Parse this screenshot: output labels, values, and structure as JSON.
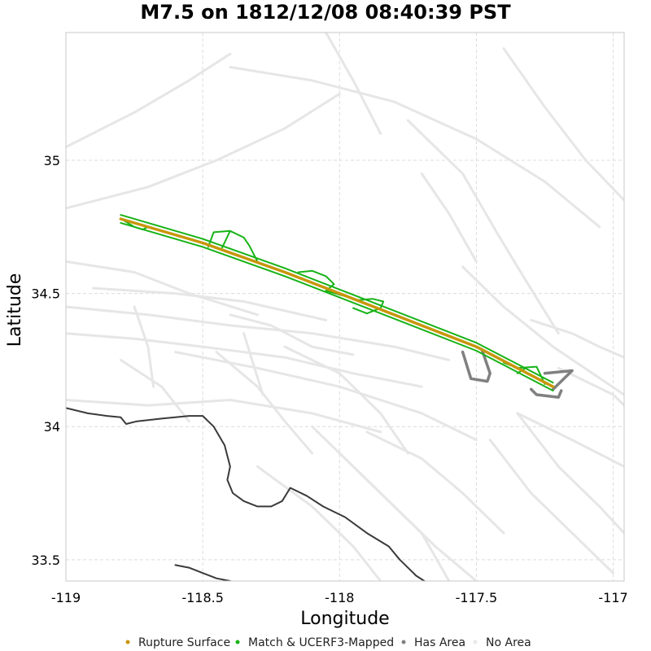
{
  "chart_data": {
    "type": "map",
    "title": "M7.5 on 1812/12/08 08:40:39 PST",
    "xlabel": "Longitude",
    "ylabel": "Latitude",
    "xlim": [
      -119.0,
      -116.96
    ],
    "ylim": [
      33.42,
      35.48
    ],
    "grid": true,
    "xticks": [
      {
        "value": -119,
        "label": "-119"
      },
      {
        "value": -118.5,
        "label": "-118.5"
      },
      {
        "value": -118,
        "label": "-118"
      },
      {
        "value": -117.5,
        "label": "-117.5"
      },
      {
        "value": -117,
        "label": "-117"
      }
    ],
    "yticks": [
      {
        "value": 35,
        "label": "35"
      },
      {
        "value": 34.5,
        "label": "34.5"
      },
      {
        "value": 34,
        "label": "34"
      },
      {
        "value": 33.5,
        "label": "33.5"
      }
    ],
    "legend_position": "bottom",
    "legend": [
      {
        "label": "Rupture Surface",
        "color": "#c8960a"
      },
      {
        "label": "Match & UCERF3-Mapped",
        "color": "#17b317"
      },
      {
        "label": "Has Area",
        "color": "#808080"
      },
      {
        "label": "No Area",
        "color": "#e8e8e8"
      }
    ],
    "colors": {
      "rupture": "#c8960a",
      "match": "#17b317",
      "has_area": "#808080",
      "no_area": "#e6e6e6",
      "coast": "#3a3a3a"
    },
    "series": [
      {
        "name": "Rupture Surface",
        "kind": "line",
        "color": "#c8960a",
        "points": [
          [
            -118.8,
            34.78
          ],
          [
            -118.5,
            34.69
          ],
          [
            -118.2,
            34.58
          ],
          [
            -117.9,
            34.46
          ],
          [
            -117.5,
            34.3
          ],
          [
            -117.22,
            34.15
          ]
        ]
      },
      {
        "name": "Match & UCERF3-Mapped",
        "kind": "segments",
        "color": "#17b317",
        "segments": [
          [
            [
              -118.8,
              34.795
            ],
            [
              -118.5,
              34.705
            ],
            [
              -118.2,
              34.595
            ],
            [
              -117.9,
              34.475
            ],
            [
              -117.5,
              34.315
            ],
            [
              -117.22,
              34.165
            ]
          ],
          [
            [
              -118.8,
              34.765
            ],
            [
              -118.5,
              34.675
            ],
            [
              -118.2,
              34.565
            ],
            [
              -117.9,
              34.445
            ],
            [
              -117.5,
              34.285
            ],
            [
              -117.22,
              34.135
            ]
          ],
          [
            [
              -118.79,
              34.775
            ],
            [
              -118.75,
              34.75
            ],
            [
              -118.72,
              34.74
            ],
            [
              -118.7,
              34.75
            ]
          ],
          [
            [
              -118.48,
              34.675
            ],
            [
              -118.46,
              34.73
            ],
            [
              -118.4,
              34.735
            ],
            [
              -118.35,
              34.71
            ],
            [
              -118.33,
              34.68
            ],
            [
              -118.3,
              34.62
            ]
          ],
          [
            [
              -118.4,
              34.735
            ],
            [
              -118.43,
              34.67
            ]
          ],
          [
            [
              -118.15,
              34.58
            ],
            [
              -118.1,
              34.585
            ],
            [
              -118.05,
              34.565
            ],
            [
              -118.02,
              34.535
            ],
            [
              -118.05,
              34.51
            ],
            [
              -117.98,
              34.49
            ]
          ],
          [
            [
              -117.98,
              34.49
            ],
            [
              -117.93,
              34.475
            ],
            [
              -117.88,
              34.48
            ],
            [
              -117.84,
              34.47
            ],
            [
              -117.85,
              34.445
            ],
            [
              -117.9,
              34.425
            ],
            [
              -117.95,
              34.445
            ]
          ],
          [
            [
              -117.4,
              34.24
            ],
            [
              -117.35,
              34.22
            ],
            [
              -117.28,
              34.225
            ],
            [
              -117.25,
              34.16
            ]
          ],
          [
            [
              -117.32,
              34.22
            ],
            [
              -117.35,
              34.2
            ]
          ]
        ]
      },
      {
        "name": "Has Area",
        "kind": "segments",
        "color": "#808080",
        "segments": [
          [
            [
              -117.55,
              34.28
            ],
            [
              -117.52,
              34.18
            ],
            [
              -117.46,
              34.17
            ],
            [
              -117.45,
              34.2
            ],
            [
              -117.48,
              34.29
            ]
          ],
          [
            [
              -117.3,
              34.14
            ],
            [
              -117.28,
              34.12
            ],
            [
              -117.2,
              34.11
            ],
            [
              -117.19,
              34.135
            ]
          ],
          [
            [
              -117.25,
              34.2
            ],
            [
              -117.15,
              34.21
            ],
            [
              -117.22,
              34.14
            ]
          ]
        ]
      },
      {
        "name": "No Area",
        "kind": "segments",
        "color": "#e6e6e6",
        "segments": [
          [
            [
              -119.0,
              35.05
            ],
            [
              -118.75,
              35.18
            ],
            [
              -118.55,
              35.3
            ],
            [
              -118.4,
              35.4
            ]
          ],
          [
            [
              -119.0,
              34.82
            ],
            [
              -118.7,
              34.9
            ],
            [
              -118.45,
              35.0
            ],
            [
              -118.2,
              35.12
            ],
            [
              -118.0,
              35.25
            ]
          ],
          [
            [
              -118.4,
              35.35
            ],
            [
              -118.1,
              35.3
            ],
            [
              -117.8,
              35.22
            ],
            [
              -117.5,
              35.08
            ],
            [
              -117.25,
              34.92
            ],
            [
              -117.05,
              34.75
            ]
          ],
          [
            [
              -117.75,
              35.15
            ],
            [
              -117.55,
              34.95
            ],
            [
              -117.42,
              34.72
            ],
            [
              -117.32,
              34.55
            ],
            [
              -117.2,
              34.35
            ]
          ],
          [
            [
              -117.4,
              35.42
            ],
            [
              -117.25,
              35.2
            ],
            [
              -117.1,
              35.0
            ],
            [
              -116.96,
              34.85
            ]
          ],
          [
            [
              -117.55,
              34.6
            ],
            [
              -117.4,
              34.45
            ],
            [
              -117.22,
              34.3
            ],
            [
              -116.96,
              34.12
            ]
          ],
          [
            [
              -117.3,
              34.4
            ],
            [
              -117.15,
              34.35
            ],
            [
              -117.05,
              34.3
            ],
            [
              -116.96,
              34.26
            ]
          ],
          [
            [
              -117.2,
              34.22
            ],
            [
              -117.0,
              34.12
            ],
            [
              -116.96,
              34.08
            ]
          ],
          [
            [
              -117.35,
              34.05
            ],
            [
              -117.15,
              33.95
            ],
            [
              -116.96,
              33.85
            ]
          ],
          [
            [
              -119.0,
              34.62
            ],
            [
              -118.75,
              34.58
            ],
            [
              -118.55,
              34.5
            ],
            [
              -118.3,
              34.42
            ]
          ],
          [
            [
              -119.0,
              34.45
            ],
            [
              -118.7,
              34.42
            ],
            [
              -118.4,
              34.38
            ],
            [
              -118.1,
              34.35
            ],
            [
              -117.8,
              34.3
            ],
            [
              -117.6,
              34.25
            ]
          ],
          [
            [
              -119.0,
              34.35
            ],
            [
              -118.75,
              34.33
            ],
            [
              -118.5,
              34.3
            ],
            [
              -118.2,
              34.26
            ],
            [
              -117.95,
              34.2
            ],
            [
              -117.7,
              34.15
            ]
          ],
          [
            [
              -118.9,
              34.52
            ],
            [
              -118.6,
              34.5
            ],
            [
              -118.35,
              34.47
            ],
            [
              -118.05,
              34.4
            ]
          ],
          [
            [
              -118.6,
              34.28
            ],
            [
              -118.3,
              34.22
            ],
            [
              -118.0,
              34.15
            ],
            [
              -117.7,
              34.05
            ],
            [
              -117.5,
              33.95
            ]
          ],
          [
            [
              -119.0,
              34.1
            ],
            [
              -118.7,
              34.08
            ],
            [
              -118.4,
              34.1
            ],
            [
              -118.1,
              34.05
            ],
            [
              -117.85,
              33.98
            ]
          ],
          [
            [
              -118.45,
              34.28
            ],
            [
              -118.3,
              34.15
            ],
            [
              -118.2,
              34.02
            ],
            [
              -118.1,
              33.9
            ]
          ],
          [
            [
              -118.2,
              34.3
            ],
            [
              -118.0,
              34.2
            ],
            [
              -117.85,
              34.05
            ],
            [
              -117.75,
              33.9
            ]
          ],
          [
            [
              -118.8,
              34.25
            ],
            [
              -118.65,
              34.15
            ],
            [
              -118.55,
              34.02
            ]
          ],
          [
            [
              -118.1,
              34.0
            ],
            [
              -117.95,
              33.85
            ],
            [
              -117.8,
              33.7
            ],
            [
              -117.65,
              33.55
            ],
            [
              -117.5,
              33.42
            ]
          ],
          [
            [
              -118.0,
              33.9
            ],
            [
              -117.85,
              33.75
            ],
            [
              -117.7,
              33.6
            ],
            [
              -117.6,
              33.42
            ]
          ],
          [
            [
              -117.9,
              33.98
            ],
            [
              -117.7,
              33.88
            ],
            [
              -117.55,
              33.75
            ],
            [
              -117.4,
              33.6
            ]
          ],
          [
            [
              -118.3,
              33.85
            ],
            [
              -118.1,
              33.7
            ],
            [
              -117.95,
              33.55
            ],
            [
              -117.85,
              33.42
            ]
          ],
          [
            [
              -117.45,
              33.95
            ],
            [
              -117.3,
              33.75
            ],
            [
              -117.15,
              33.6
            ],
            [
              -117.0,
              33.45
            ]
          ],
          [
            [
              -117.35,
              34.05
            ],
            [
              -117.2,
              33.85
            ],
            [
              -117.05,
              33.7
            ],
            [
              -116.96,
              33.6
            ]
          ],
          [
            [
              -118.05,
              35.48
            ],
            [
              -117.95,
              35.3
            ],
            [
              -117.85,
              35.1
            ]
          ],
          [
            [
              -117.7,
              34.95
            ],
            [
              -117.6,
              34.8
            ],
            [
              -117.5,
              34.62
            ]
          ],
          [
            [
              -118.4,
              34.42
            ],
            [
              -118.25,
              34.38
            ],
            [
              -118.1,
              34.3
            ],
            [
              -117.95,
              34.27
            ]
          ],
          [
            [
              -118.75,
              34.45
            ],
            [
              -118.7,
              34.3
            ],
            [
              -118.68,
              34.15
            ]
          ],
          [
            [
              -118.35,
              34.35
            ],
            [
              -118.32,
              34.25
            ],
            [
              -118.28,
              34.12
            ]
          ]
        ]
      },
      {
        "name": "Coastline",
        "kind": "line",
        "color": "#3a3a3a",
        "segments": [
          [
            [
              -119.0,
              34.07
            ],
            [
              -118.92,
              34.05
            ],
            [
              -118.85,
              34.04
            ],
            [
              -118.8,
              34.035
            ],
            [
              -118.78,
              34.01
            ],
            [
              -118.74,
              34.02
            ],
            [
              -118.65,
              34.03
            ],
            [
              -118.55,
              34.04
            ],
            [
              -118.5,
              34.04
            ],
            [
              -118.46,
              34.0
            ],
            [
              -118.42,
              33.93
            ],
            [
              -118.4,
              33.85
            ],
            [
              -118.41,
              33.8
            ],
            [
              -118.39,
              33.75
            ],
            [
              -118.35,
              33.72
            ],
            [
              -118.3,
              33.7
            ],
            [
              -118.25,
              33.7
            ],
            [
              -118.21,
              33.72
            ],
            [
              -118.18,
              33.77
            ],
            [
              -118.12,
              33.74
            ],
            [
              -118.06,
              33.7
            ],
            [
              -117.98,
              33.66
            ],
            [
              -117.9,
              33.6
            ],
            [
              -117.82,
              33.55
            ],
            [
              -117.78,
              33.5
            ],
            [
              -117.72,
              33.44
            ],
            [
              -117.69,
              33.42
            ]
          ],
          [
            [
              -118.6,
              33.48
            ],
            [
              -118.55,
              33.47
            ],
            [
              -118.5,
              33.45
            ],
            [
              -118.45,
              33.43
            ],
            [
              -118.4,
              33.42
            ]
          ]
        ]
      }
    ]
  }
}
